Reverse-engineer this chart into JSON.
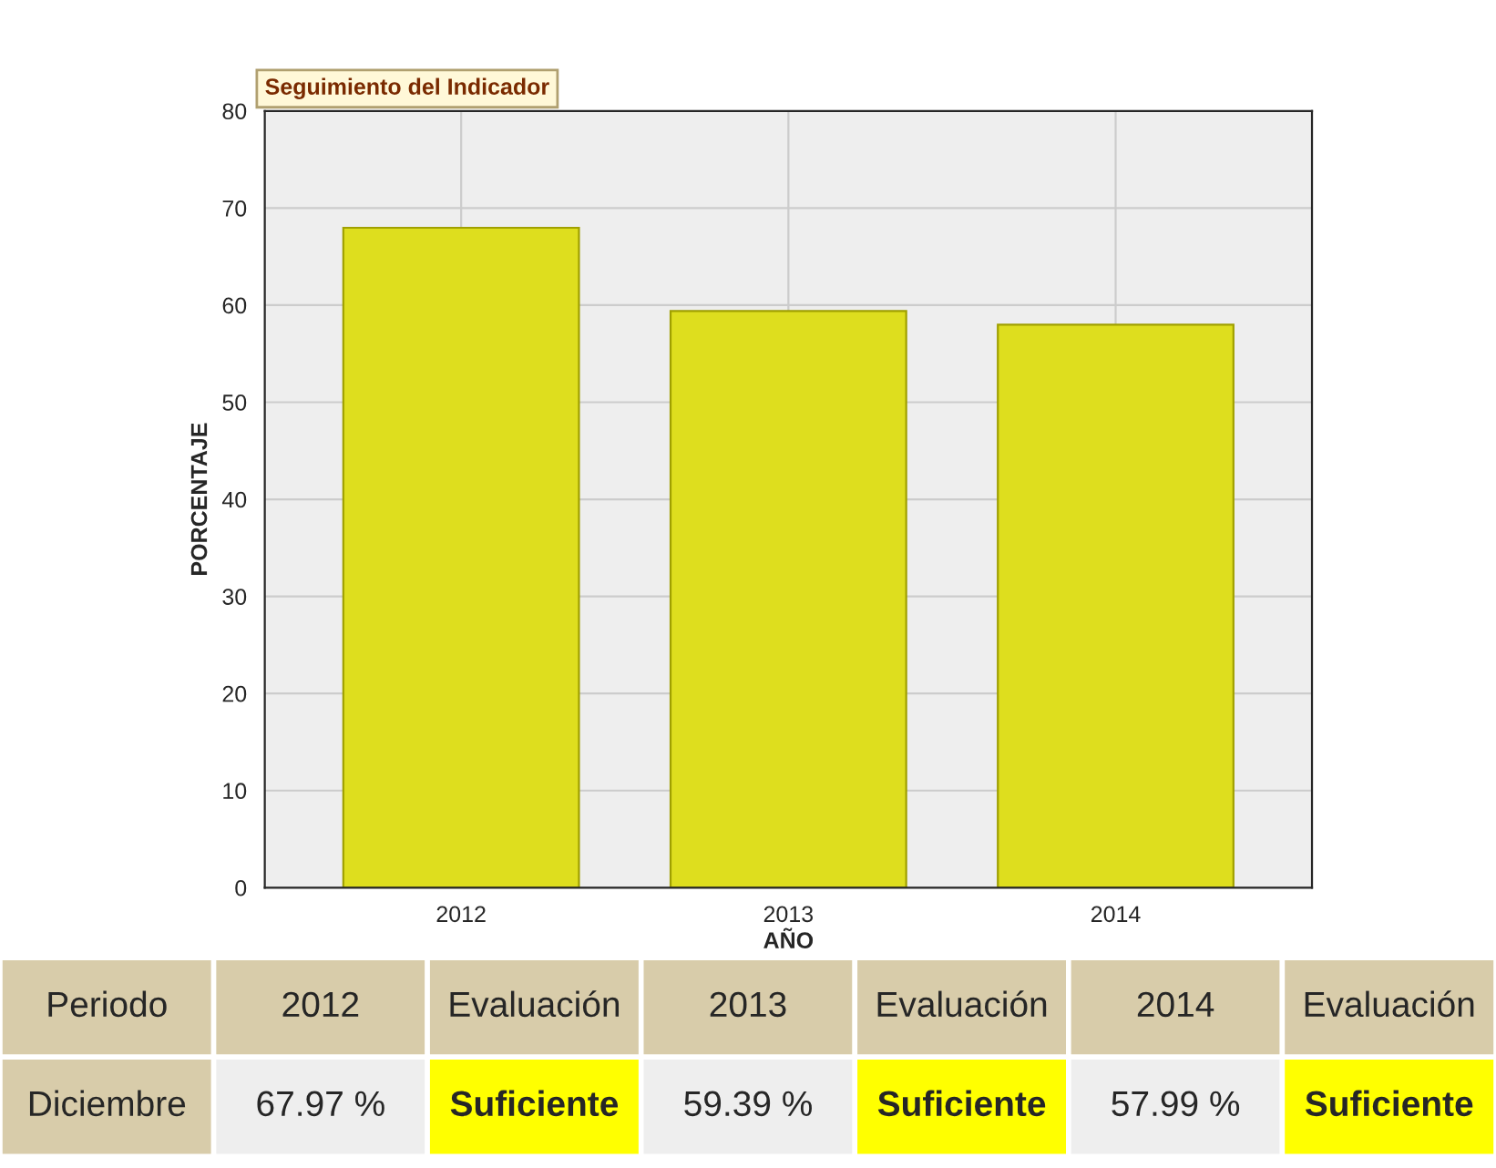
{
  "chart_data": {
    "type": "bar",
    "title": "Seguimiento del Indicador",
    "xlabel": "AÑO",
    "ylabel": "PORCENTAJE",
    "categories": [
      "2012",
      "2013",
      "2014"
    ],
    "values": [
      67.97,
      59.39,
      57.99
    ],
    "value_labels": [
      "67.97 %",
      "59.39 %",
      "57.99 %"
    ],
    "color": "#dede1e",
    "ylim": [
      0,
      80
    ],
    "yticks": [
      0,
      10,
      20,
      30,
      40,
      50,
      60,
      70,
      80
    ],
    "grid": true,
    "annotations": [
      "Periodo",
      "Diciembre",
      "Evaluación",
      "Suficiente",
      "Evaluación",
      "Suficiente",
      "Evaluación",
      "Suficiente"
    ]
  }
}
